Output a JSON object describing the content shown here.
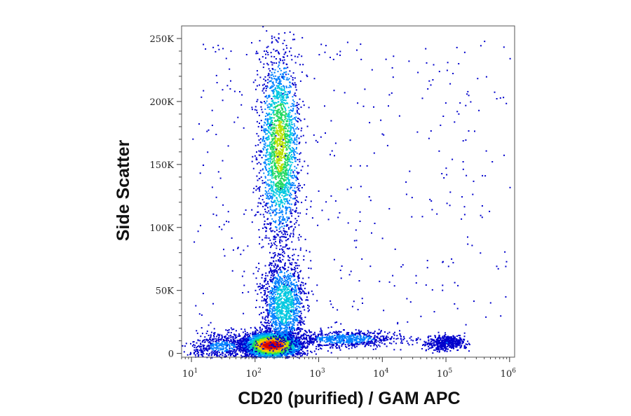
{
  "chart_data": {
    "type": "scatter",
    "subtype": "flow cytometry density dot plot (pseudocolor)",
    "xlabel": "CD20 (purified) / GAM APC",
    "ylabel": "Side Scatter",
    "x_scale": "log",
    "xlim": [
      7,
      1200000
    ],
    "ylim": [
      -3000,
      260000
    ],
    "x_ticks": [
      {
        "value": 10,
        "base": "10",
        "exp": "1"
      },
      {
        "value": 100,
        "base": "10",
        "exp": "2"
      },
      {
        "value": 1000,
        "base": "10",
        "exp": "3"
      },
      {
        "value": 10000,
        "base": "10",
        "exp": "4"
      },
      {
        "value": 100000,
        "base": "10",
        "exp": "5"
      },
      {
        "value": 1000000,
        "base": "10",
        "exp": "6"
      }
    ],
    "y_ticks": [
      {
        "value": 0,
        "label": "0"
      },
      {
        "value": 50000,
        "label": "50K"
      },
      {
        "value": 100000,
        "label": "100K"
      },
      {
        "value": 150000,
        "label": "150K"
      },
      {
        "value": 200000,
        "label": "200K"
      },
      {
        "value": 250000,
        "label": "250K"
      }
    ],
    "density_colors": [
      "#0000cc",
      "#0080ff",
      "#00c8e0",
      "#20d860",
      "#b8e000",
      "#ffc800",
      "#ff5000",
      "#d80000"
    ],
    "populations": [
      {
        "x_center": 180,
        "y_center": 7000,
        "x_log_sd": 0.22,
        "y_sd": 5000,
        "weight": 1.0
      },
      {
        "x_center": 240,
        "y_center": 165000,
        "x_log_sd": 0.16,
        "y_sd": 38000,
        "weight": 0.55
      },
      {
        "x_center": 280,
        "y_center": 40000,
        "x_log_sd": 0.17,
        "y_sd": 18000,
        "weight": 0.35
      },
      {
        "x_center": 2500,
        "y_center": 12000,
        "x_log_sd": 0.45,
        "y_sd": 3500,
        "weight": 0.2
      },
      {
        "x_center": 100000,
        "y_center": 9000,
        "x_log_sd": 0.15,
        "y_sd": 3000,
        "weight": 0.12
      },
      {
        "x_center": 30,
        "y_center": 6000,
        "x_log_sd": 0.3,
        "y_sd": 6000,
        "weight": 0.15
      }
    ],
    "grid": false,
    "legend": "none"
  }
}
